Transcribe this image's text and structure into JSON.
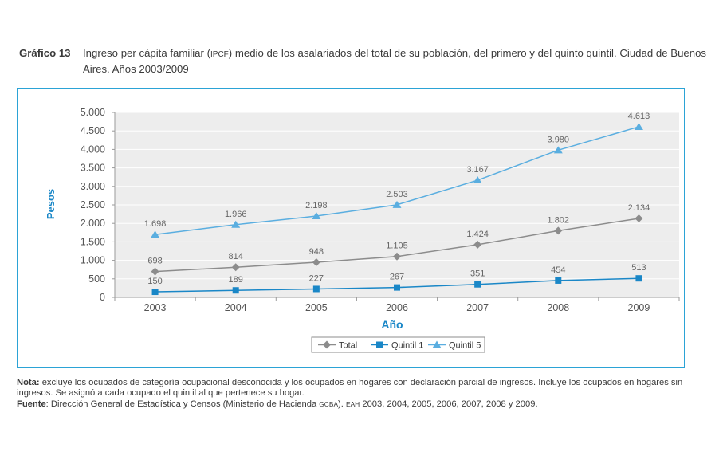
{
  "figure_label": "Gráfico 13",
  "title_part1": "Ingreso per cápita familiar (",
  "title_abbrev": "IPCF",
  "title_part2": ") medio de los asalariados del total de su población, del primero y del quinto quintil. Ciudad de Buenos Aires. Años 2003/2009",
  "note_label": "Nota:",
  "note_text": " excluye los ocupados de categoría ocupacional desconocida y los ocupados en hogares con declaración parcial de ingresos. Incluye los ocupados en hogares sin ingresos. Se asignó a cada ocupado el quintil al que pertenece su hogar.",
  "source_label": "Fuente",
  "source_text1": ": Dirección General de Estadística y Censos (Ministerio de Hacienda ",
  "source_abbrev1": "GCBA",
  "source_text2": "). ",
  "source_abbrev2": "EAH",
  "source_text3": " 2003, 2004, 2005, 2006, 2007, 2008 y 2009.",
  "chart_data": {
    "type": "line",
    "title": "",
    "xlabel": "Año",
    "ylabel": "Pesos",
    "categories": [
      "2003",
      "2004",
      "2005",
      "2006",
      "2007",
      "2008",
      "2009"
    ],
    "ylim": [
      0,
      5000
    ],
    "yticks": [
      0,
      500,
      1000,
      1500,
      2000,
      2500,
      3000,
      3500,
      4000,
      4500,
      5000
    ],
    "ytick_labels": [
      "0",
      "500",
      "1.000",
      "1.500",
      "2.000",
      "2.500",
      "3.000",
      "3.500",
      "4.000",
      "4.500",
      "5.000"
    ],
    "grid": true,
    "legend_position": "bottom",
    "series": [
      {
        "name": "Total",
        "values": [
          698,
          814,
          948,
          1105,
          1424,
          1802,
          2134
        ],
        "labels": [
          "698",
          "814",
          "948",
          "1.105",
          "1.424",
          "1.802",
          "2.134"
        ],
        "color": "#8c8c8c",
        "marker": "diamond"
      },
      {
        "name": "Quintil 1",
        "values": [
          150,
          189,
          227,
          267,
          351,
          454,
          513
        ],
        "labels": [
          "150",
          "189",
          "227",
          "267",
          "351",
          "454",
          "513"
        ],
        "color": "#1a87c7",
        "marker": "square"
      },
      {
        "name": "Quintil 5",
        "values": [
          1698,
          1966,
          2198,
          2503,
          3167,
          3980,
          4613
        ],
        "labels": [
          "1.698",
          "1.966",
          "2.198",
          "2.503",
          "3.167",
          "3.980",
          "4.613"
        ],
        "color": "#5aaee0",
        "marker": "triangle"
      }
    ]
  }
}
